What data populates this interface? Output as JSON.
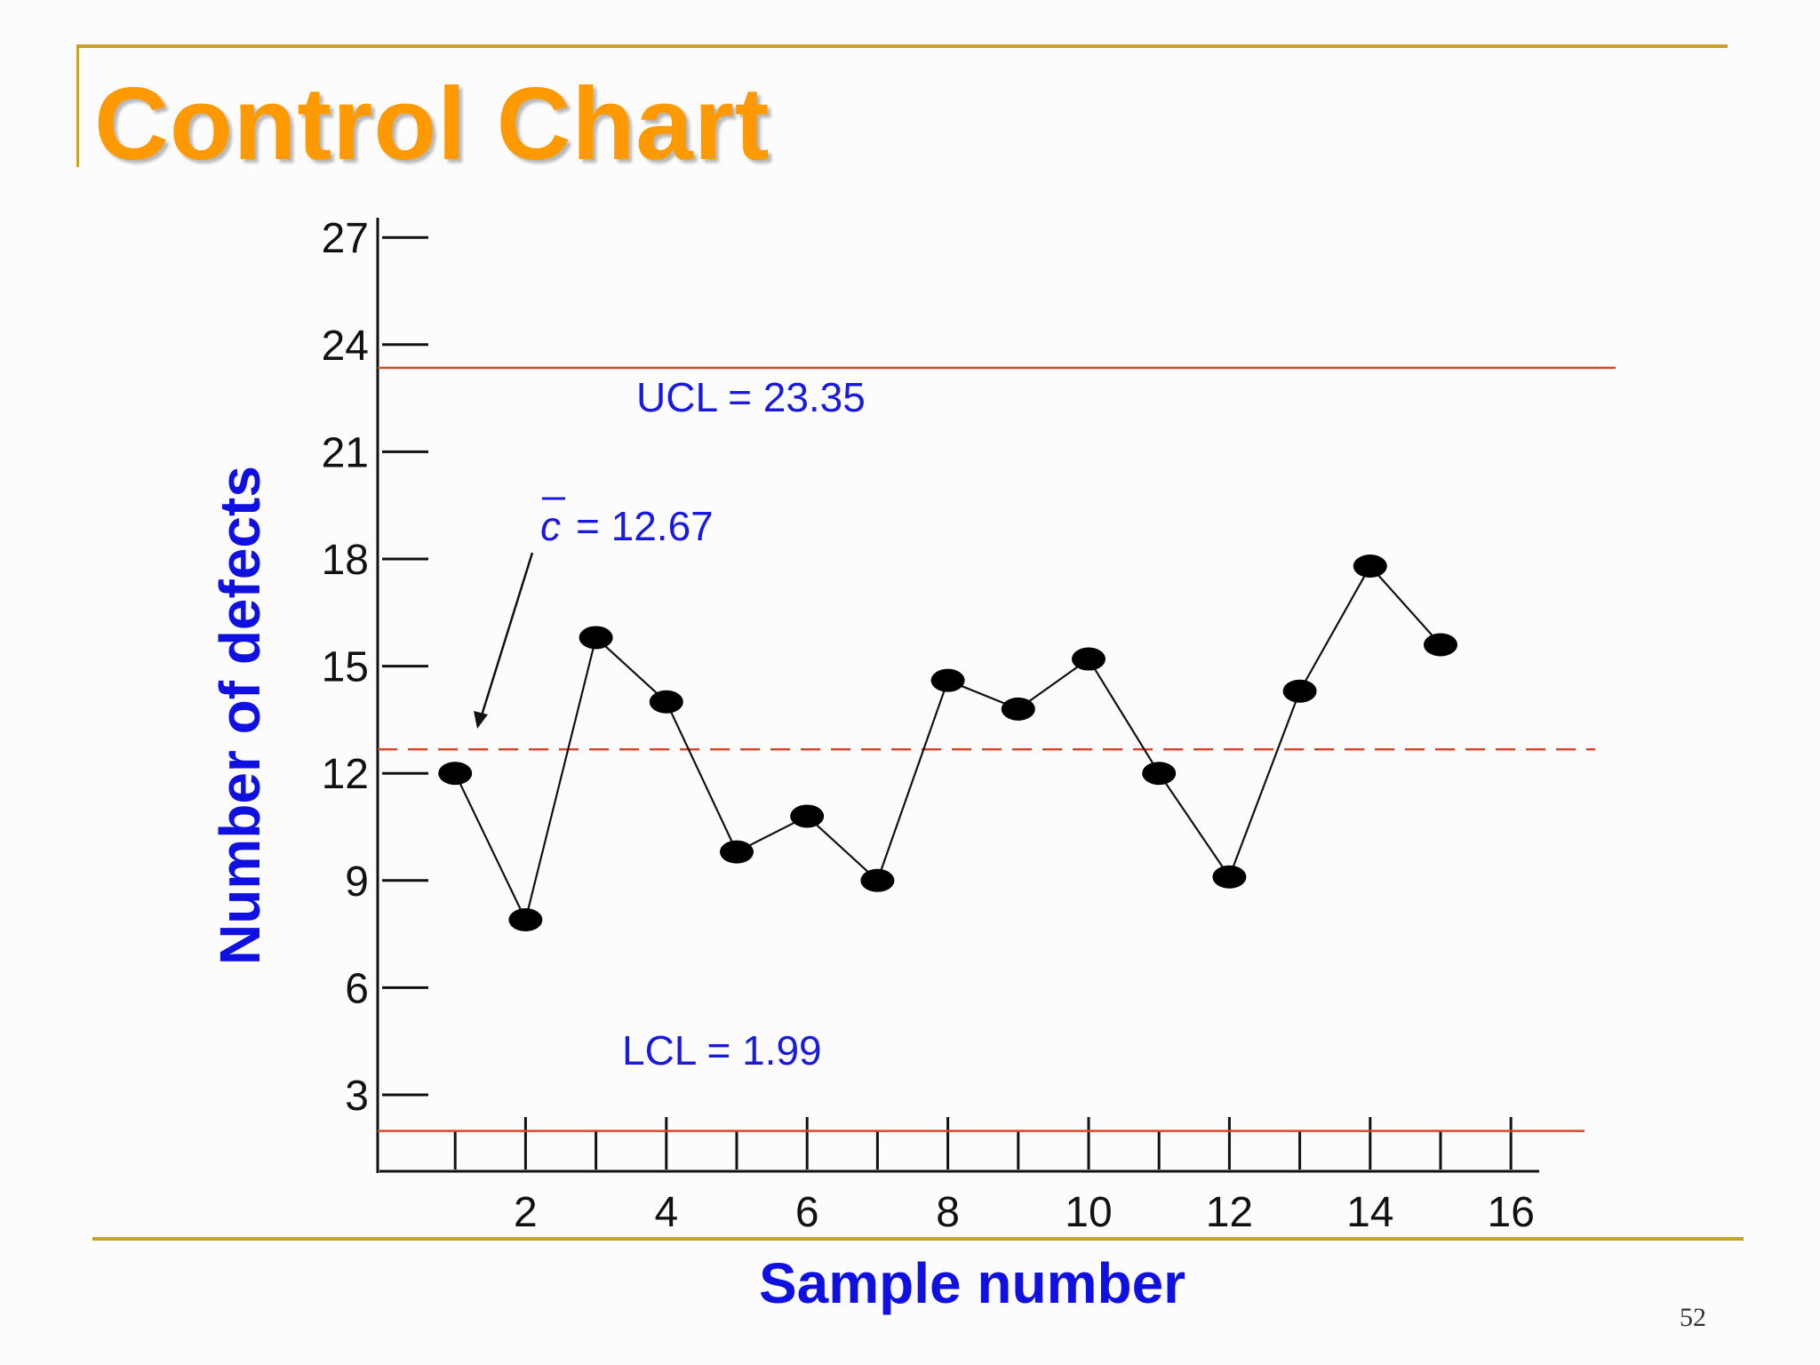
{
  "slide": {
    "title": "Control Chart",
    "page_number": "52",
    "colors": {
      "title": "#ff9900",
      "accent_rule": "#c9a227",
      "axis_labels": "#1010e0",
      "control_lines": "#d9472b",
      "annotations": "#1a1adf",
      "points": "#000000"
    }
  },
  "chart_data": {
    "type": "line",
    "title": "",
    "xlabel": "Sample number",
    "ylabel": "Number of defects",
    "xlim": [
      0,
      16
    ],
    "ylim": [
      0,
      27
    ],
    "x_tick_labels": [
      2,
      4,
      6,
      8,
      10,
      12,
      14,
      16
    ],
    "y_tick_labels": [
      3,
      6,
      9,
      12,
      15,
      18,
      21,
      24,
      27
    ],
    "x_minor_ticks": [
      1,
      2,
      3,
      4,
      5,
      6,
      7,
      8,
      9,
      10,
      11,
      12,
      13,
      14,
      15,
      16
    ],
    "grid": false,
    "series": [
      {
        "x": [
          1,
          2,
          3,
          4,
          5,
          6,
          7,
          8,
          9,
          10,
          11,
          12,
          13,
          14,
          15
        ],
        "values": [
          12,
          7.9,
          15.8,
          14,
          9.8,
          10.8,
          9,
          14.6,
          13.8,
          15.2,
          12,
          9.1,
          14.3,
          17.8,
          15.6
        ]
      }
    ],
    "reference_lines": {
      "ucl": {
        "value": 23.35,
        "label": "UCL = 23.35"
      },
      "center": {
        "value": 12.67,
        "label_symbol": "c",
        "label_value": "= 12.67"
      },
      "lcl": {
        "value": 1.99,
        "label": "LCL = 1.99"
      }
    }
  }
}
